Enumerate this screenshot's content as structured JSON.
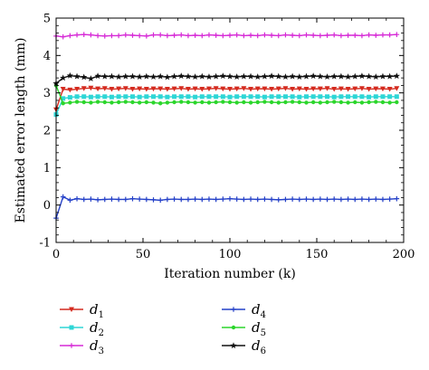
{
  "chart_data": {
    "type": "line",
    "title": "",
    "xlabel": "Iteration number (k)",
    "ylabel": "Estimated error length (mm)",
    "xlim": [
      0,
      200
    ],
    "ylim": [
      -1,
      5
    ],
    "xticks": [
      0,
      50,
      100,
      150,
      200
    ],
    "yticks": [
      -1,
      0,
      1,
      2,
      3,
      4,
      5
    ],
    "grid": false,
    "legend_position": "below plot, two columns",
    "x": [
      0,
      4,
      8,
      12,
      16,
      20,
      24,
      28,
      32,
      36,
      40,
      44,
      48,
      52,
      56,
      60,
      64,
      68,
      72,
      76,
      80,
      84,
      88,
      92,
      96,
      100,
      104,
      108,
      112,
      116,
      120,
      124,
      128,
      132,
      136,
      140,
      144,
      148,
      152,
      156,
      160,
      164,
      168,
      172,
      176,
      180,
      184,
      188,
      192,
      196
    ],
    "series": [
      {
        "name": "d1",
        "base": "d",
        "sub": "1",
        "color": "#d42a1e",
        "marker": "triangle-down",
        "values": [
          2.55,
          3.1,
          3.08,
          3.1,
          3.12,
          3.13,
          3.11,
          3.12,
          3.1,
          3.11,
          3.12,
          3.1,
          3.11,
          3.1,
          3.11,
          3.11,
          3.1,
          3.11,
          3.12,
          3.1,
          3.11,
          3.1,
          3.11,
          3.12,
          3.11,
          3.1,
          3.11,
          3.12,
          3.1,
          3.11,
          3.11,
          3.1,
          3.11,
          3.12,
          3.1,
          3.11,
          3.1,
          3.11,
          3.11,
          3.12,
          3.1,
          3.11,
          3.1,
          3.11,
          3.12,
          3.1,
          3.11,
          3.11,
          3.1,
          3.12
        ]
      },
      {
        "name": "d2",
        "base": "d",
        "sub": "2",
        "color": "#2ed6d6",
        "marker": "square",
        "values": [
          2.42,
          2.85,
          2.88,
          2.9,
          2.9,
          2.89,
          2.9,
          2.9,
          2.89,
          2.9,
          2.9,
          2.9,
          2.89,
          2.9,
          2.9,
          2.9,
          2.89,
          2.9,
          2.9,
          2.9,
          2.89,
          2.9,
          2.9,
          2.9,
          2.9,
          2.89,
          2.9,
          2.9,
          2.9,
          2.9,
          2.89,
          2.9,
          2.9,
          2.9,
          2.9,
          2.89,
          2.9,
          2.9,
          2.9,
          2.9,
          2.89,
          2.9,
          2.9,
          2.9,
          2.9,
          2.89,
          2.9,
          2.9,
          2.9,
          2.9
        ]
      },
      {
        "name": "d3",
        "base": "d",
        "sub": "3",
        "color": "#d62ad6",
        "marker": "plus",
        "values": [
          4.52,
          4.5,
          4.53,
          4.55,
          4.56,
          4.55,
          4.53,
          4.52,
          4.53,
          4.53,
          4.55,
          4.54,
          4.53,
          4.52,
          4.55,
          4.55,
          4.53,
          4.54,
          4.55,
          4.53,
          4.54,
          4.53,
          4.55,
          4.54,
          4.53,
          4.54,
          4.55,
          4.53,
          4.54,
          4.53,
          4.55,
          4.54,
          4.53,
          4.55,
          4.54,
          4.53,
          4.55,
          4.54,
          4.53,
          4.54,
          4.55,
          4.53,
          4.54,
          4.54,
          4.53,
          4.55,
          4.54,
          4.55,
          4.55,
          4.56
        ]
      },
      {
        "name": "d4",
        "base": "d",
        "sub": "4",
        "color": "#2440c8",
        "marker": "plus",
        "values": [
          -0.35,
          0.22,
          0.13,
          0.17,
          0.15,
          0.16,
          0.14,
          0.15,
          0.16,
          0.15,
          0.15,
          0.17,
          0.16,
          0.15,
          0.14,
          0.13,
          0.15,
          0.16,
          0.15,
          0.15,
          0.16,
          0.15,
          0.16,
          0.15,
          0.16,
          0.17,
          0.16,
          0.15,
          0.16,
          0.15,
          0.16,
          0.15,
          0.14,
          0.15,
          0.16,
          0.15,
          0.16,
          0.15,
          0.16,
          0.15,
          0.16,
          0.15,
          0.16,
          0.15,
          0.16,
          0.15,
          0.16,
          0.15,
          0.16,
          0.17
        ]
      },
      {
        "name": "d5",
        "base": "d",
        "sub": "5",
        "color": "#2cd62c",
        "marker": "circle",
        "values": [
          3.2,
          2.72,
          2.74,
          2.76,
          2.75,
          2.74,
          2.76,
          2.75,
          2.74,
          2.75,
          2.76,
          2.75,
          2.74,
          2.75,
          2.74,
          2.72,
          2.74,
          2.75,
          2.76,
          2.75,
          2.74,
          2.75,
          2.74,
          2.75,
          2.76,
          2.75,
          2.74,
          2.75,
          2.74,
          2.75,
          2.76,
          2.75,
          2.74,
          2.75,
          2.76,
          2.75,
          2.74,
          2.75,
          2.74,
          2.75,
          2.76,
          2.75,
          2.74,
          2.75,
          2.74,
          2.75,
          2.76,
          2.75,
          2.74,
          2.75
        ]
      },
      {
        "name": "d6",
        "base": "d",
        "sub": "6",
        "color": "#111111",
        "marker": "star",
        "values": [
          3.25,
          3.4,
          3.46,
          3.44,
          3.42,
          3.38,
          3.45,
          3.44,
          3.44,
          3.43,
          3.44,
          3.44,
          3.43,
          3.44,
          3.43,
          3.44,
          3.42,
          3.44,
          3.45,
          3.44,
          3.43,
          3.44,
          3.43,
          3.44,
          3.45,
          3.44,
          3.43,
          3.44,
          3.44,
          3.43,
          3.44,
          3.45,
          3.44,
          3.43,
          3.44,
          3.43,
          3.44,
          3.45,
          3.44,
          3.43,
          3.44,
          3.44,
          3.43,
          3.44,
          3.45,
          3.44,
          3.43,
          3.44,
          3.44,
          3.45
        ]
      }
    ]
  }
}
